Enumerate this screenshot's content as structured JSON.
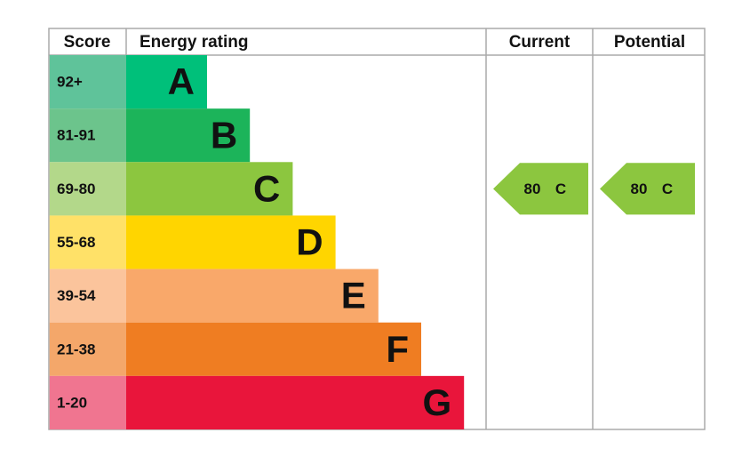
{
  "header": {
    "score": "Score",
    "rating": "Energy rating",
    "current": "Current",
    "potential": "Potential"
  },
  "bands": [
    {
      "score": "92+",
      "letter": "A",
      "color": "#00c07a",
      "score_color": "#5fc39a"
    },
    {
      "score": "81-91",
      "letter": "B",
      "color": "#1cb45a",
      "score_color": "#6cc48c"
    },
    {
      "score": "69-80",
      "letter": "C",
      "color": "#8cc63f",
      "score_color": "#b3d88a"
    },
    {
      "score": "55-68",
      "letter": "D",
      "color": "#ffd500",
      "score_color": "#ffe168"
    },
    {
      "score": "39-54",
      "letter": "E",
      "color": "#f9a86a",
      "score_color": "#fbc49c"
    },
    {
      "score": "21-38",
      "letter": "F",
      "color": "#ef7d22",
      "score_color": "#f4a76a"
    },
    {
      "score": "1-20",
      "letter": "G",
      "color": "#e9153b",
      "score_color": "#f07590"
    }
  ],
  "current": {
    "score": 80,
    "band": "C",
    "color": "#8cc63f"
  },
  "potential": {
    "score": 80,
    "band": "C",
    "color": "#8cc63f"
  }
}
